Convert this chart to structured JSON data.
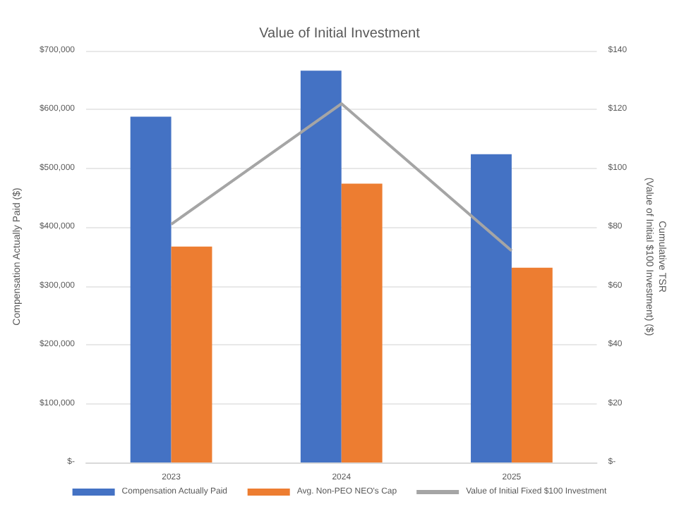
{
  "chart_data": {
    "type": "bar",
    "title": "Value of Initial Investment",
    "ylabel": "Compensation Actually Paid ($)",
    "y2label": "Cumulative TSR\n(Value of Initial $100 Investment) ($)",
    "categories": [
      "2023",
      "2024",
      "2025"
    ],
    "series": [
      {
        "name": "Compensation Actually Paid",
        "color": "#4472c4",
        "values": [
          588000,
          666000,
          524000
        ]
      },
      {
        "name": "Avg. Non-PEO NEO's Cap",
        "color": "#ed7d31",
        "values": [
          367000,
          474000,
          331000
        ]
      },
      {
        "name": "Value of Initial Fixed $100 Investment",
        "type": "line",
        "axis": "y2",
        "color": "#a5a5a5",
        "values": [
          81,
          122,
          72
        ]
      }
    ],
    "ylim": [
      0,
      700000
    ],
    "yticks": [
      {
        "value": 0,
        "label": "$-"
      },
      {
        "value": 100000,
        "label": "$100,000"
      },
      {
        "value": 200000,
        "label": "$200,000"
      },
      {
        "value": 300000,
        "label": "$300,000"
      },
      {
        "value": 400000,
        "label": "$400,000"
      },
      {
        "value": 500000,
        "label": "$500,000"
      },
      {
        "value": 600000,
        "label": "$600,000"
      },
      {
        "value": 700000,
        "label": "$700,000"
      }
    ],
    "y2lim": [
      0,
      140
    ],
    "y2ticks": [
      {
        "value": 0,
        "label": "$-"
      },
      {
        "value": 20,
        "label": "$20"
      },
      {
        "value": 40,
        "label": "$40"
      },
      {
        "value": 60,
        "label": "$60"
      },
      {
        "value": 80,
        "label": "$80"
      },
      {
        "value": 100,
        "label": "$100"
      },
      {
        "value": 120,
        "label": "$120"
      },
      {
        "value": 140,
        "label": "$140"
      }
    ],
    "grid": "y",
    "legend": "bottom",
    "marker": "none",
    "line_style": "solid"
  }
}
